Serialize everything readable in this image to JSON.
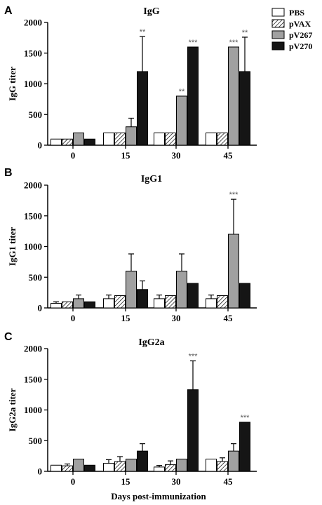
{
  "colors": {
    "PBS": "#ffffff",
    "pVAX": "#ffffff",
    "pV267": "#a0a0a0",
    "pV270": "#151515",
    "axis": "#000000",
    "significance": "#555555"
  },
  "legend": {
    "items": [
      {
        "label": "PBS",
        "fill": "white"
      },
      {
        "label": "pVAX",
        "fill": "hatch"
      },
      {
        "label": "pV267",
        "fill": "gray"
      },
      {
        "label": "pV270",
        "fill": "black"
      }
    ]
  },
  "figure": {
    "xlabel": "Days post-immunization"
  },
  "chart_data": [
    {
      "type": "bar",
      "panel_letter": "A",
      "title": "IgG",
      "ylabel": "IgG titer",
      "xlabel": "",
      "ylim": [
        0,
        2000
      ],
      "yticks": [
        "0",
        "500",
        "1000",
        "1500",
        "2000"
      ],
      "ytick_values": [
        0,
        500,
        1000,
        1500,
        2000
      ],
      "categories": [
        "0",
        "15",
        "30",
        "45"
      ],
      "series": [
        {
          "name": "PBS",
          "values": [
            100,
            200,
            200,
            200
          ],
          "errors": [
            0,
            0,
            0,
            0
          ],
          "significance": [
            "",
            "",
            "",
            ""
          ]
        },
        {
          "name": "pVAX",
          "values": [
            100,
            200,
            200,
            200
          ],
          "errors": [
            0,
            0,
            0,
            0
          ],
          "significance": [
            "",
            "",
            "",
            ""
          ]
        },
        {
          "name": "pV267",
          "values": [
            200,
            300,
            800,
            1600
          ],
          "errors": [
            0,
            140,
            0,
            0
          ],
          "significance": [
            "",
            "",
            "**",
            "***"
          ]
        },
        {
          "name": "pV270",
          "values": [
            100,
            1200,
            1600,
            1200
          ],
          "errors": [
            0,
            570,
            0,
            560
          ],
          "significance": [
            "",
            "**",
            "***",
            "**"
          ]
        }
      ]
    },
    {
      "type": "bar",
      "panel_letter": "B",
      "title": "IgG1",
      "ylabel": "IgG1 titer",
      "xlabel": "",
      "ylim": [
        0,
        2000
      ],
      "yticks": [
        "0",
        "500",
        "1000",
        "1500",
        "2000"
      ],
      "ytick_values": [
        0,
        500,
        1000,
        1500,
        2000
      ],
      "categories": [
        "0",
        "15",
        "30",
        "45"
      ],
      "series": [
        {
          "name": "PBS",
          "values": [
            75,
            150,
            150,
            150
          ],
          "errors": [
            25,
            60,
            60,
            60
          ],
          "significance": [
            "",
            "",
            "",
            ""
          ]
        },
        {
          "name": "pVAX",
          "values": [
            100,
            200,
            200,
            200
          ],
          "errors": [
            0,
            0,
            0,
            0
          ],
          "significance": [
            "",
            "",
            "",
            ""
          ]
        },
        {
          "name": "pV267",
          "values": [
            150,
            600,
            600,
            1200
          ],
          "errors": [
            60,
            280,
            280,
            570
          ],
          "significance": [
            "",
            "",
            "",
            "***"
          ]
        },
        {
          "name": "pV270",
          "values": [
            100,
            300,
            400,
            400
          ],
          "errors": [
            0,
            140,
            0,
            0
          ],
          "significance": [
            "",
            "",
            "",
            ""
          ]
        }
      ]
    },
    {
      "type": "bar",
      "panel_letter": "C",
      "title": "IgG2a",
      "ylabel": "IgG2a titer",
      "xlabel": "Days post-immunization",
      "ylim": [
        0,
        2000
      ],
      "yticks": [
        "0",
        "500",
        "1000",
        "1500",
        "2000"
      ],
      "ytick_values": [
        0,
        500,
        1000,
        1500,
        2000
      ],
      "categories": [
        "0",
        "15",
        "30",
        "45"
      ],
      "series": [
        {
          "name": "PBS",
          "values": [
            100,
            130,
            70,
            200
          ],
          "errors": [
            0,
            60,
            25,
            0
          ],
          "significance": [
            "",
            "",
            "",
            ""
          ]
        },
        {
          "name": "pVAX",
          "values": [
            90,
            160,
            110,
            160
          ],
          "errors": [
            30,
            80,
            60,
            60
          ],
          "significance": [
            "",
            "",
            "",
            ""
          ]
        },
        {
          "name": "pV267",
          "values": [
            200,
            200,
            200,
            330
          ],
          "errors": [
            0,
            0,
            0,
            120
          ],
          "significance": [
            "",
            "",
            "",
            ""
          ]
        },
        {
          "name": "pV270",
          "values": [
            100,
            330,
            1330,
            800
          ],
          "errors": [
            0,
            120,
            470,
            0
          ],
          "significance": [
            "",
            "",
            "***",
            "***"
          ]
        }
      ]
    }
  ]
}
